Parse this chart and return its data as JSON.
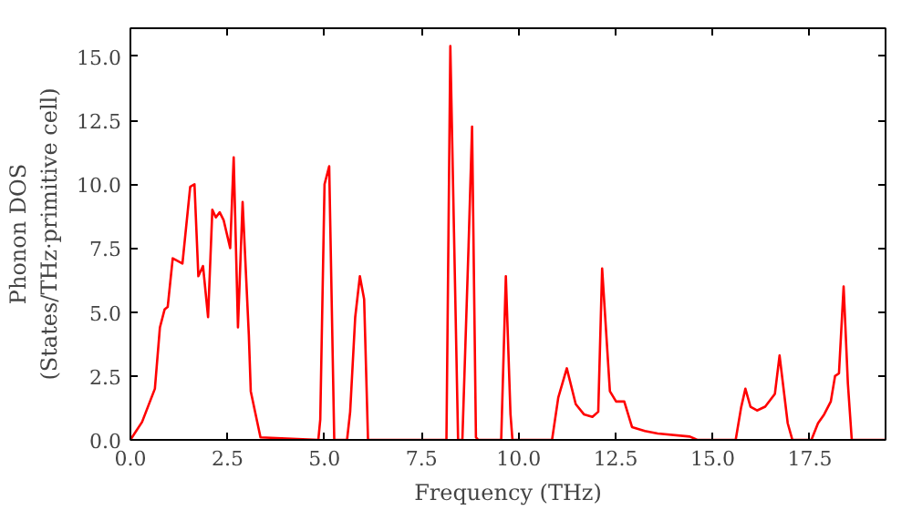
{
  "chart_data": {
    "type": "line",
    "xlabel": "Frequency (THz)",
    "ylabel": "Phonon DOS\n(States/THz·primitive cell)",
    "xlim": [
      0,
      19.45
    ],
    "ylim": [
      0,
      16.1
    ],
    "xticks": [
      {
        "value": 0,
        "label": "0.0"
      },
      {
        "value": 2.5,
        "label": "2.5"
      },
      {
        "value": 5,
        "label": "5.0"
      },
      {
        "value": 7.5,
        "label": "7.5"
      },
      {
        "value": 10,
        "label": "10.0"
      },
      {
        "value": 12.5,
        "label": "12.5"
      },
      {
        "value": 15,
        "label": "15.0"
      },
      {
        "value": 17.5,
        "label": "17.5"
      }
    ],
    "yticks": [
      {
        "value": 0,
        "label": "0.0"
      },
      {
        "value": 2.5,
        "label": "2.5"
      },
      {
        "value": 5,
        "label": "5.0"
      },
      {
        "value": 7.5,
        "label": "7.5"
      },
      {
        "value": 10,
        "label": "10.0"
      },
      {
        "value": 12.5,
        "label": "12.5"
      },
      {
        "value": 15,
        "label": "15.0"
      }
    ],
    "series": [
      {
        "color": "#ff0000",
        "x": [
          0,
          0.3,
          0.63,
          0.76,
          0.88,
          0.96,
          1.09,
          1.34,
          1.42,
          1.54,
          1.65,
          1.75,
          1.87,
          2.0,
          2.11,
          2.2,
          2.3,
          2.4,
          2.57,
          2.66,
          2.77,
          2.89,
          3.05,
          3.1,
          3.35,
          4.84,
          4.89,
          5.0,
          5.12,
          5.25,
          5.58,
          5.66,
          5.79,
          5.91,
          6.02,
          6.12,
          8.14,
          8.24,
          8.44,
          8.55,
          8.71,
          8.8,
          8.9,
          8.96,
          9.55,
          9.67,
          9.79,
          9.84,
          10.86,
          11.02,
          11.24,
          11.47,
          11.68,
          11.9,
          12.05,
          12.15,
          12.35,
          12.51,
          12.72,
          12.92,
          13.25,
          13.58,
          14.41,
          14.6,
          15.59,
          15.73,
          15.84,
          15.97,
          16.14,
          16.35,
          16.6,
          16.72,
          16.93,
          17.05,
          17.54,
          17.71,
          17.87,
          18.04,
          18.15,
          18.25,
          18.37,
          18.48,
          18.58,
          19.44
        ],
        "values": [
          0,
          0.7,
          2.0,
          4.4,
          5.1,
          5.2,
          7.1,
          6.9,
          8.1,
          9.9,
          10.0,
          6.4,
          6.8,
          4.8,
          9.0,
          8.7,
          8.9,
          8.6,
          7.5,
          11.05,
          4.4,
          9.3,
          4.1,
          1.9,
          0.1,
          0,
          0.8,
          10.0,
          10.7,
          0,
          0,
          1.1,
          4.8,
          6.4,
          5.5,
          0,
          0,
          15.4,
          0,
          0,
          7.6,
          12.25,
          0.1,
          0,
          0,
          6.4,
          1.0,
          0,
          0,
          1.65,
          2.8,
          1.4,
          1.0,
          0.9,
          1.1,
          6.7,
          1.9,
          1.5,
          1.5,
          0.5,
          0.35,
          0.25,
          0.13,
          0,
          0,
          1.27,
          2.0,
          1.3,
          1.15,
          1.3,
          1.8,
          3.3,
          0.65,
          0,
          0,
          0.65,
          1.0,
          1.5,
          2.5,
          2.6,
          6.0,
          2.2,
          0,
          0
        ]
      }
    ]
  }
}
